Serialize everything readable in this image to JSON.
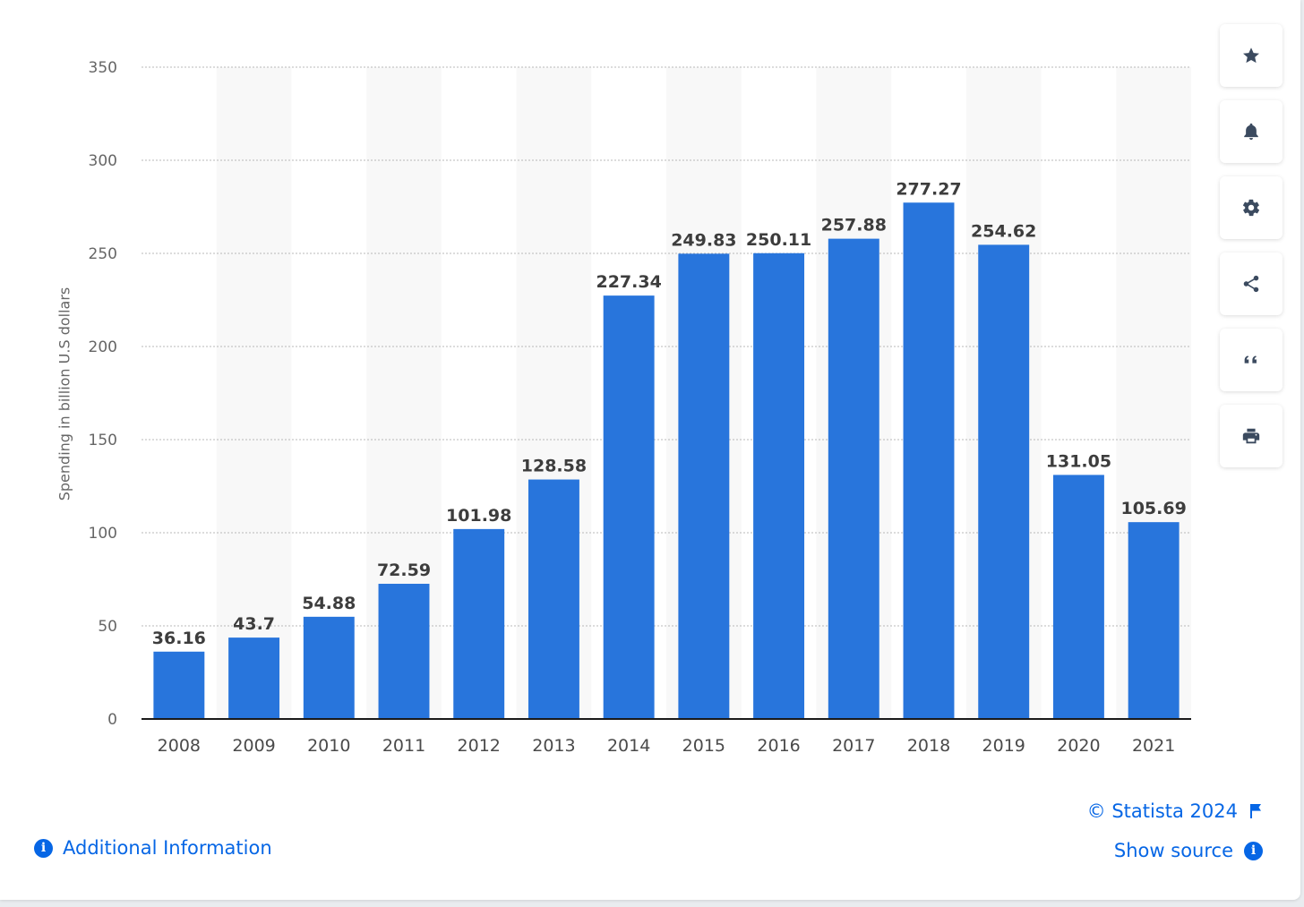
{
  "chart_data": {
    "type": "bar",
    "categories": [
      "2008",
      "2009",
      "2010",
      "2011",
      "2012",
      "2013",
      "2014",
      "2015",
      "2016",
      "2017",
      "2018",
      "2019",
      "2020",
      "2021"
    ],
    "values": [
      36.16,
      43.7,
      54.88,
      72.59,
      101.98,
      128.58,
      227.34,
      249.83,
      250.11,
      257.88,
      277.27,
      254.62,
      131.05,
      105.69
    ],
    "value_labels": [
      "36.16",
      "43.7",
      "54.88",
      "72.59",
      "101.98",
      "128.58",
      "227.34",
      "249.83",
      "250.11",
      "257.88",
      "277.27",
      "254.62",
      "131.05",
      "105.69"
    ],
    "ylabel": "Spending in billion U.S dollars",
    "ylim": [
      0,
      350
    ],
    "yticks": [
      "0",
      "50",
      "100",
      "150",
      "200",
      "250",
      "300",
      "350"
    ],
    "grid": true,
    "bar_color": "#2875dc"
  },
  "toolbar": {
    "buttons": [
      {
        "name": "favorite-button",
        "icon": "star-icon"
      },
      {
        "name": "notification-button",
        "icon": "bell-icon"
      },
      {
        "name": "settings-button",
        "icon": "gear-icon"
      },
      {
        "name": "share-button",
        "icon": "share-icon"
      },
      {
        "name": "cite-button",
        "icon": "quote-icon"
      },
      {
        "name": "print-button",
        "icon": "printer-icon"
      }
    ]
  },
  "footer": {
    "additional_info": "Additional Information",
    "copyright": "© Statista 2024",
    "show_source": "Show source"
  },
  "colors": {
    "accent": "#0666e5",
    "icon": "#3b4a5f"
  }
}
